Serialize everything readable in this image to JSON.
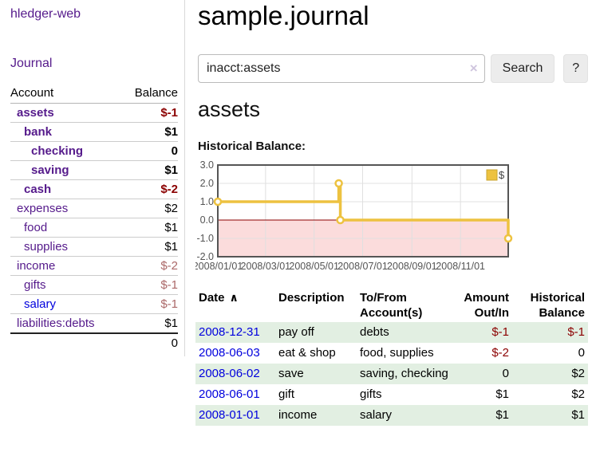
{
  "colors": {
    "accent_purple": "#551a8b",
    "link_blue": "#0000dd",
    "negative_strong": "#8b0000",
    "negative_faded": "#ab6868",
    "row_green": "#e2efe2",
    "button_gray": "#ececec"
  },
  "sidebar": {
    "brand": "hledger-web",
    "nav_journal": "Journal",
    "accounts": {
      "col_account": "Account",
      "col_balance": "Balance",
      "rows": [
        {
          "account": "assets",
          "balance": "$-1"
        },
        {
          "account": "bank",
          "balance": "$1"
        },
        {
          "account": "checking",
          "balance": "0"
        },
        {
          "account": "saving",
          "balance": "$1"
        },
        {
          "account": "cash",
          "balance": "$-2"
        },
        {
          "account": "expenses",
          "balance": "$2"
        },
        {
          "account": "food",
          "balance": "$1"
        },
        {
          "account": "supplies",
          "balance": "$1"
        },
        {
          "account": "income",
          "balance": "$-2"
        },
        {
          "account": "gifts",
          "balance": "$-1"
        },
        {
          "account": "salary",
          "balance": "$-1"
        },
        {
          "account": "liabilities:debts",
          "balance": "$1"
        }
      ],
      "total": "0"
    }
  },
  "main": {
    "title": "sample.journal",
    "search": {
      "value": "inacct:assets",
      "clear_icon": "×",
      "search_button": "Search",
      "help_button": "?"
    },
    "account_heading": "assets",
    "chart_heading": "Historical Balance:"
  },
  "chart_data": {
    "type": "line",
    "style": "step-after",
    "title": "Historical Balance:",
    "series": [
      {
        "name": "$",
        "color": "#edc240",
        "points": [
          [
            "2008-01-01",
            1
          ],
          [
            "2008-06-01",
            2
          ],
          [
            "2008-06-03",
            0
          ],
          [
            "2008-12-31",
            -1
          ]
        ]
      }
    ],
    "x_ticks": [
      "2008/01/01",
      "2008/03/01",
      "2008/05/01",
      "2008/07/01",
      "2008/09/01",
      "2008/11/01"
    ],
    "y_ticks": [
      3.0,
      2.0,
      1.0,
      0.0,
      -1.0,
      -2.0
    ],
    "xlim": [
      "2008-01-01",
      "2008-12-31"
    ],
    "ylim": [
      -2,
      3
    ],
    "grid": true,
    "legend_position": "top-right",
    "negative_region_color": "#fbdcdc",
    "zero_line_color": "#8b0000",
    "border_color": "#555555",
    "grid_color": "#e0e0e0",
    "tick_color": "#545454"
  },
  "register": {
    "headers": {
      "date": "Date",
      "sort_icon": "∧",
      "description": "Description",
      "accounts": "To/From Account(s)",
      "amount": "Amount Out/In",
      "balance": "Historical Balance"
    },
    "rows": [
      {
        "date": "2008-12-31",
        "description": "pay off",
        "accounts": "debts",
        "amount": "$-1",
        "balance": "$-1"
      },
      {
        "date": "2008-06-03",
        "description": "eat & shop",
        "accounts": "food, supplies",
        "amount": "$-2",
        "balance": "0"
      },
      {
        "date": "2008-06-02",
        "description": "save",
        "accounts": "saving, checking",
        "amount": "0",
        "balance": "$2"
      },
      {
        "date": "2008-06-01",
        "description": "gift",
        "accounts": "gifts",
        "amount": "$1",
        "balance": "$2"
      },
      {
        "date": "2008-01-01",
        "description": "income",
        "accounts": "salary",
        "amount": "$1",
        "balance": "$1"
      }
    ]
  }
}
